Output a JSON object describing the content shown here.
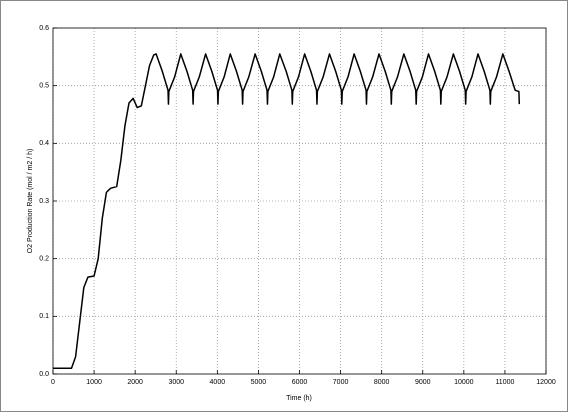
{
  "chart_data": {
    "type": "line",
    "xlabel": "Time (h)",
    "ylabel": "O2 Production Rate (mol / m2 / h)",
    "color": "#000000",
    "grid": true,
    "xlim": [
      0,
      12000
    ],
    "ylim": [
      0,
      0.6
    ],
    "xticks": [
      0,
      1000,
      2000,
      3000,
      4000,
      5000,
      6000,
      7000,
      8000,
      9000,
      10000,
      11000,
      12000
    ],
    "yticks": [
      {
        "value": 0,
        "label": "0.0"
      },
      0.1,
      0.2,
      0.3,
      0.4,
      0.5,
      0.6
    ],
    "x": [
      0,
      450,
      550,
      650,
      750,
      850,
      1000,
      1100,
      1200,
      1300,
      1400,
      1550,
      1650,
      1750,
      1850,
      1950,
      2050,
      2150,
      2250,
      2350,
      2450,
      2510,
      2660,
      2800,
      2810,
      2820,
      2960,
      3110,
      3260,
      3400,
      3410,
      3420,
      3560,
      3715,
      3865,
      4005,
      4015,
      4025,
      4165,
      4315,
      4465,
      4605,
      4615,
      4625,
      4765,
      4920,
      5070,
      5210,
      5220,
      5230,
      5370,
      5520,
      5675,
      5815,
      5825,
      5835,
      5975,
      6125,
      6275,
      6415,
      6425,
      6435,
      6575,
      6730,
      6880,
      7020,
      7030,
      7040,
      7180,
      7330,
      7480,
      7620,
      7630,
      7640,
      7780,
      7935,
      8085,
      8225,
      8235,
      8245,
      8385,
      8540,
      8690,
      8830,
      8840,
      8850,
      8990,
      9140,
      9290,
      9430,
      9440,
      9450,
      9590,
      9745,
      9895,
      10035,
      10045,
      10055,
      10195,
      10345,
      10495,
      10635,
      10645,
      10655,
      10795,
      10950,
      11100,
      11250,
      11340,
      11350
    ],
    "values": [
      0.01,
      0.01,
      0.03,
      0.09,
      0.15,
      0.168,
      0.17,
      0.2,
      0.27,
      0.315,
      0.322,
      0.325,
      0.37,
      0.43,
      0.47,
      0.478,
      0.462,
      0.465,
      0.5,
      0.535,
      0.553,
      0.555,
      0.525,
      0.492,
      0.468,
      0.49,
      0.515,
      0.555,
      0.525,
      0.492,
      0.468,
      0.49,
      0.515,
      0.555,
      0.525,
      0.492,
      0.468,
      0.49,
      0.515,
      0.555,
      0.525,
      0.492,
      0.468,
      0.49,
      0.515,
      0.555,
      0.525,
      0.492,
      0.468,
      0.49,
      0.515,
      0.555,
      0.525,
      0.492,
      0.468,
      0.49,
      0.515,
      0.555,
      0.525,
      0.492,
      0.468,
      0.49,
      0.515,
      0.555,
      0.525,
      0.492,
      0.468,
      0.49,
      0.515,
      0.555,
      0.525,
      0.492,
      0.468,
      0.49,
      0.515,
      0.555,
      0.525,
      0.492,
      0.468,
      0.49,
      0.515,
      0.555,
      0.525,
      0.492,
      0.468,
      0.49,
      0.515,
      0.555,
      0.525,
      0.492,
      0.468,
      0.49,
      0.515,
      0.555,
      0.525,
      0.492,
      0.468,
      0.49,
      0.515,
      0.555,
      0.525,
      0.492,
      0.468,
      0.49,
      0.515,
      0.555,
      0.525,
      0.492,
      0.49,
      0.468
    ]
  }
}
